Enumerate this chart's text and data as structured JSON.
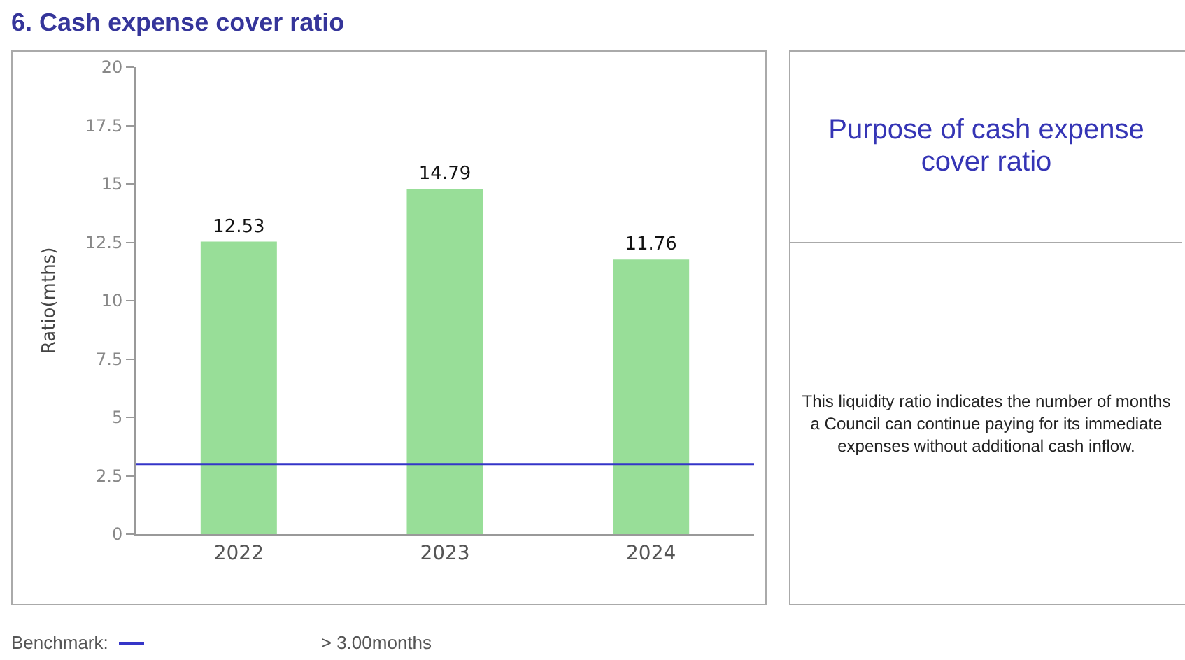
{
  "chart_data": {
    "type": "bar",
    "title": "6. Cash expense cover ratio",
    "ylabel": "Ratio(mths)",
    "categories": [
      "2022",
      "2023",
      "2024"
    ],
    "values": [
      12.53,
      14.79,
      11.76
    ],
    "color": "#98de98",
    "ylim": [
      0,
      20
    ],
    "yticks": [
      0,
      2.5,
      5,
      7.5,
      10,
      12.5,
      15,
      17.5,
      20
    ],
    "grid": false,
    "data_labels": true,
    "ref_lines": [
      {
        "axis": "y",
        "value": 3,
        "label": "Benchmark:",
        "color": "#3535c8"
      }
    ],
    "annotations": [
      "> 3.00months",
      "Purpose of cash expense cover ratio",
      "This liquidity ratio indicates the number of months a Council can continue paying for its immediate expenses without additional cash inflow."
    ]
  }
}
